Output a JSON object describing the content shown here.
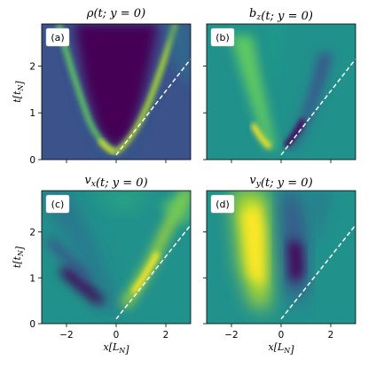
{
  "chart_data": [
    {
      "type": "heatmap",
      "panel_label": "(a)",
      "title": "ρ(t; y = 0)",
      "xlabel": "",
      "ylabel": "t[t_N]",
      "xlim": [
        -3,
        3
      ],
      "ylim": [
        0,
        2.9
      ],
      "xticks": [
        -2,
        0,
        2
      ],
      "yticks": [
        0,
        1,
        2
      ],
      "background": "#3a558c",
      "reference_line": {
        "x": [
          0,
          3
        ],
        "y": [
          0.1,
          2.15
        ],
        "style": "dashed",
        "color": "#ffffff"
      },
      "features": [
        {
          "kind": "core",
          "description_color": "#440154"
        },
        {
          "kind": "right-front",
          "color": "#addc30"
        },
        {
          "kind": "left-front",
          "color": "#5ec962"
        }
      ]
    },
    {
      "type": "heatmap",
      "panel_label": "(b)",
      "title": "b_z(t; y = 0)",
      "xlabel": "",
      "ylabel": "",
      "xlim": [
        -3,
        3
      ],
      "ylim": [
        0,
        2.9
      ],
      "xticks": [
        -2,
        0,
        2
      ],
      "yticks": [
        0,
        1,
        2
      ],
      "background": "#21918c",
      "reference_line": {
        "x": [
          0,
          3
        ],
        "y": [
          0.1,
          2.15
        ],
        "style": "dashed",
        "color": "#ffffff"
      }
    },
    {
      "type": "heatmap",
      "panel_label": "(c)",
      "title": "v_x(t; y = 0)",
      "xlabel": "x[L_N]",
      "ylabel": "t[t_N]",
      "xlim": [
        -3,
        3
      ],
      "ylim": [
        0,
        2.9
      ],
      "xticks": [
        -2,
        0,
        2
      ],
      "yticks": [
        0,
        1,
        2
      ],
      "background": "#21918c",
      "reference_line": {
        "x": [
          0,
          3
        ],
        "y": [
          0.1,
          2.15
        ],
        "style": "dashed",
        "color": "#ffffff"
      }
    },
    {
      "type": "heatmap",
      "panel_label": "(d)",
      "title": "v_y(t; y = 0)",
      "xlabel": "x[L_N]",
      "ylabel": "",
      "xlim": [
        -3,
        3
      ],
      "ylim": [
        0,
        2.9
      ],
      "xticks": [
        -2,
        0,
        2
      ],
      "yticks": [
        0,
        1,
        2
      ],
      "background": "#21918c",
      "reference_line": {
        "x": [
          0,
          3
        ],
        "y": [
          0.1,
          2.15
        ],
        "style": "dashed",
        "color": "#ffffff"
      }
    }
  ],
  "tick_labels": {
    "x": [
      "−2",
      "0",
      "2"
    ],
    "y": [
      "0",
      "1",
      "2"
    ]
  }
}
